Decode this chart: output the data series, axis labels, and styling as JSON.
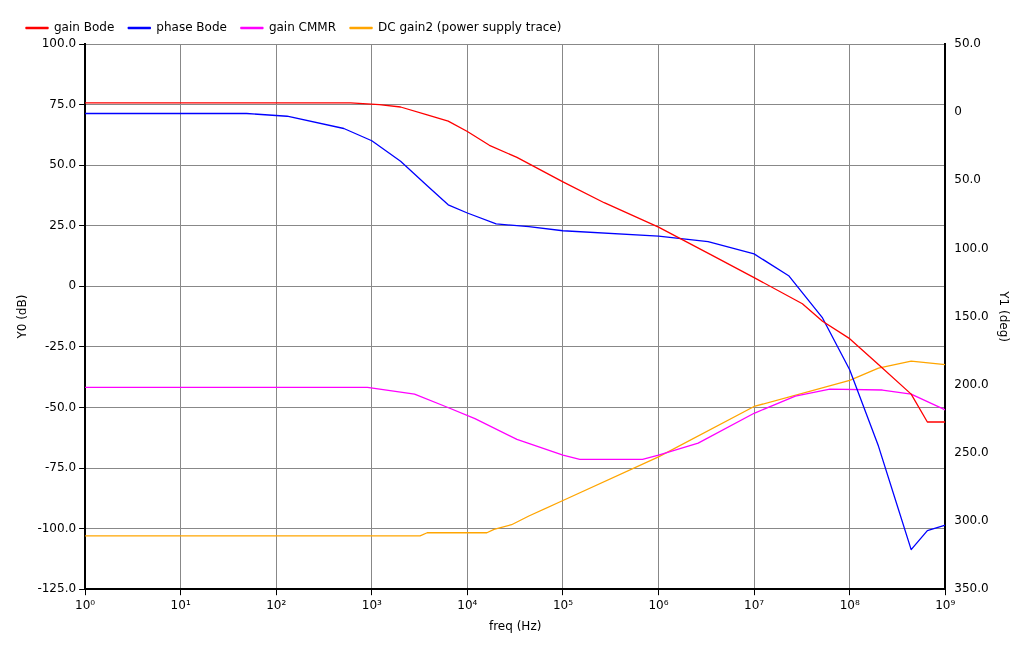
{
  "chart_data": {
    "type": "line",
    "xlabel": "freq (Hz)",
    "ylabel": "Y0 (dB)",
    "y2label": "Y1 (deg)",
    "log": "x",
    "grid": true,
    "legend": "top",
    "marker": "none",
    "line_style": "solid",
    "xlim": [
      1,
      1000000000
    ],
    "xticks": [
      {
        "value": 1,
        "label": "10⁰"
      },
      {
        "value": 10,
        "label": "10¹"
      },
      {
        "value": 100,
        "label": "10²"
      },
      {
        "value": 1000,
        "label": "10³"
      },
      {
        "value": 10000,
        "label": "10⁴"
      },
      {
        "value": 100000,
        "label": "10⁵"
      },
      {
        "value": 1000000,
        "label": "10⁶"
      },
      {
        "value": 10000000,
        "label": "10⁷"
      },
      {
        "value": 100000000,
        "label": "10⁸"
      },
      {
        "value": 1000000000,
        "label": "10⁹"
      }
    ],
    "ylim": [
      -125,
      100
    ],
    "yticks": [
      {
        "value": 100,
        "label": "100.0"
      },
      {
        "value": 75,
        "label": "75.0"
      },
      {
        "value": 50,
        "label": "50.0"
      },
      {
        "value": 25,
        "label": "25.0"
      },
      0,
      {
        "value": -25,
        "label": "-25.0"
      },
      {
        "value": -50,
        "label": "-50.0"
      },
      {
        "value": -75,
        "label": "-75.0"
      },
      {
        "value": -100,
        "label": "-100.0"
      },
      {
        "value": -125,
        "label": "-125.0"
      }
    ],
    "y2lim": [
      -350,
      50
    ],
    "y2ticks": [
      {
        "value": 50,
        "label": "50.0"
      },
      0,
      {
        "value": -50,
        "label": "50.0"
      },
      {
        "value": -100,
        "label": "100.0"
      },
      {
        "value": -150,
        "label": "150.0"
      },
      {
        "value": -200,
        "label": "200.0"
      },
      {
        "value": -250,
        "label": "250.0"
      },
      {
        "value": -300,
        "label": "300.0"
      },
      {
        "value": -350,
        "label": "350.0"
      }
    ],
    "series": [
      {
        "name": "gain Bode",
        "color": "#ff0000",
        "x": [
          1,
          600,
          1200,
          2000,
          3800,
          6300,
          10000,
          17000,
          33000,
          100000,
          270000,
          1000000,
          3600000,
          10000000,
          32000000,
          52000000,
          100000000,
          200000000,
          440000000,
          650000000,
          1000000000
        ],
        "values": [
          75.7,
          75.7,
          75,
          74,
          70.7,
          68.2,
          63.9,
          58.2,
          53.2,
          43.1,
          34.5,
          24.4,
          12.9,
          3.6,
          -7.2,
          -14.4,
          -21.6,
          -32.3,
          -44.5,
          -56,
          -56
        ]
      },
      {
        "name": "phase Bode",
        "color": "#0000ff",
        "axis": "y2",
        "x": [
          1,
          49,
          130,
          510,
          1000,
          2000,
          3800,
          6300,
          10000,
          20000,
          44000,
          100000,
          1000000,
          3300000,
          10000000,
          23000000,
          52000000,
          100000000,
          200000000,
          440000000,
          650000000,
          1000000000
        ],
        "values": [
          -1,
          -1,
          -3,
          -12,
          -21,
          -36,
          -54,
          -68,
          -74,
          -82,
          -84,
          -87,
          -91,
          -95,
          -104,
          -120,
          -151,
          -189,
          -245,
          -321,
          -307,
          -303
        ]
      },
      {
        "name": "gain CMMR",
        "color": "#ff00ff",
        "x": [
          1,
          900,
          2800,
          5900,
          12000,
          33000,
          100000,
          150000,
          680000,
          1000000,
          2600000,
          10000000,
          27000000,
          62000000,
          220000000,
          440000000,
          1000000000
        ],
        "values": [
          -41.7,
          -41.7,
          -44.5,
          -49.6,
          -54.6,
          -63.2,
          -69.7,
          -71.4,
          -71.4,
          -69.7,
          -64.7,
          -52.4,
          -45.3,
          -42.4,
          -42.8,
          -44.5,
          -51
        ]
      },
      {
        "name": "DC gain2 (power supply trace)",
        "color": "#ffa500",
        "x": [
          1,
          3200,
          3800,
          16000,
          19000,
          29000,
          44000,
          100000,
          1000000,
          10000000,
          100000000,
          200000000,
          440000000,
          1000000000
        ],
        "values": [
          -103,
          -103,
          -101.7,
          -101.7,
          -100.3,
          -98.4,
          -94.8,
          -88.4,
          -70.4,
          -49.6,
          -38.8,
          -33.8,
          -30.9,
          -32.3
        ]
      }
    ]
  }
}
